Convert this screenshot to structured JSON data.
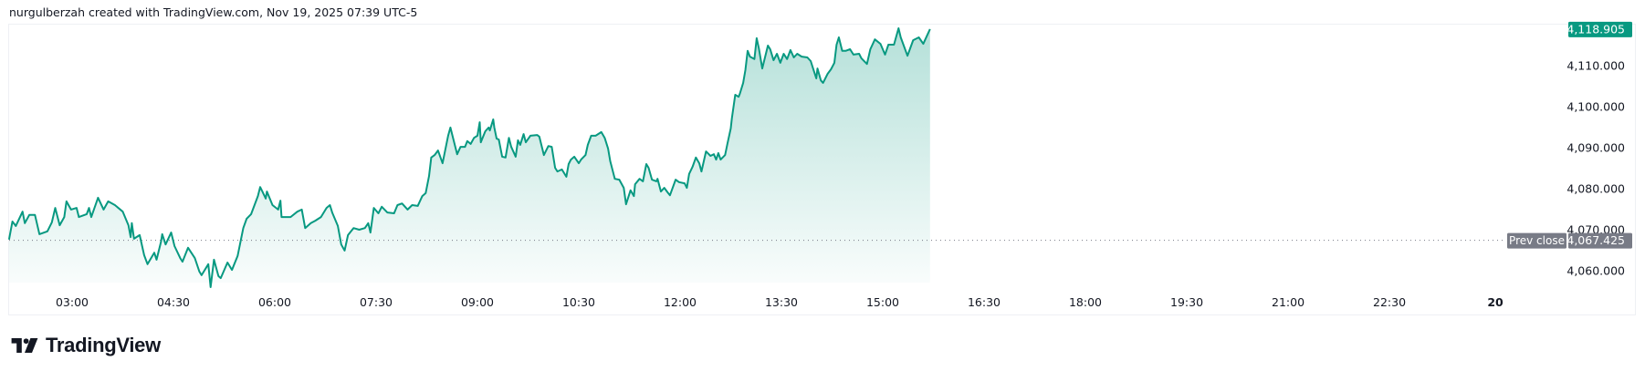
{
  "header": {
    "attribution": "nurgulberzah created with TradingView.com, Nov 19, 2025 07:39 UTC-5"
  },
  "logo": {
    "text": "TradingView"
  },
  "colors": {
    "line": "#089981",
    "last_price_badge": "#089981",
    "prev_close_badge": "#787b86",
    "axis_text": "#131722",
    "border": "#eef0f4"
  },
  "chart_data": {
    "type": "area",
    "title": "",
    "xlabel": "",
    "ylabel": "",
    "ylim": [
      4056,
      4120
    ],
    "grid": false,
    "y_ticks": [
      "4,110.000",
      "4,100.000",
      "4,090.000",
      "4,080.000",
      "4,070.000",
      "4,060.000"
    ],
    "y_tick_values": [
      4110,
      4100,
      4090,
      4080,
      4070,
      4060
    ],
    "x_ticks": [
      {
        "label": "03:00",
        "time": "03:00"
      },
      {
        "label": "04:30",
        "time": "04:30"
      },
      {
        "label": "06:00",
        "time": "06:00"
      },
      {
        "label": "07:30",
        "time": "07:30"
      },
      {
        "label": "09:00",
        "time": "09:00"
      },
      {
        "label": "10:30",
        "time": "10:30"
      },
      {
        "label": "12:00",
        "time": "12:00"
      },
      {
        "label": "13:30",
        "time": "13:30"
      },
      {
        "label": "15:00",
        "time": "15:00"
      },
      {
        "label": "16:30",
        "time": "16:30"
      },
      {
        "label": "18:00",
        "time": "18:00"
      },
      {
        "label": "19:30",
        "time": "19:30"
      },
      {
        "label": "21:00",
        "time": "21:00"
      },
      {
        "label": "22:30",
        "time": "22:30"
      },
      {
        "label": "20",
        "time": "24:00",
        "bold": true
      }
    ],
    "last_price": {
      "label": "4,118.905",
      "value": 4118.905
    },
    "prev_close": {
      "label": "Prev close",
      "value_label": "4,067.425",
      "value": 4067.425
    },
    "points": [
      [
        "02:04",
        4067.6
      ],
      [
        "02:07",
        4072.0
      ],
      [
        "02:10",
        4070.9
      ],
      [
        "02:16",
        4074.4
      ],
      [
        "02:18",
        4071.6
      ],
      [
        "02:22",
        4073.6
      ],
      [
        "02:27",
        4073.6
      ],
      [
        "02:31",
        4068.9
      ],
      [
        "02:38",
        4069.6
      ],
      [
        "02:42",
        4071.8
      ],
      [
        "02:45",
        4075.3
      ],
      [
        "02:49",
        4071.1
      ],
      [
        "02:53",
        4073.1
      ],
      [
        "02:55",
        4076.9
      ],
      [
        "02:59",
        4074.9
      ],
      [
        "03:04",
        4075.3
      ],
      [
        "03:06",
        4073.1
      ],
      [
        "03:13",
        4073.8
      ],
      [
        "03:15",
        4075.3
      ],
      [
        "03:17",
        4073.1
      ],
      [
        "03:23",
        4077.8
      ],
      [
        "03:28",
        4074.9
      ],
      [
        "03:32",
        4076.9
      ],
      [
        "03:38",
        4076.0
      ],
      [
        "03:45",
        4074.4
      ],
      [
        "03:50",
        4071.1
      ],
      [
        "03:52",
        4068.2
      ],
      [
        "03:53",
        4071.6
      ],
      [
        "03:55",
        4067.8
      ],
      [
        "04:00",
        4068.7
      ],
      [
        "04:04",
        4063.8
      ],
      [
        "04:07",
        4061.6
      ],
      [
        "04:13",
        4064.4
      ],
      [
        "04:15",
        4062.7
      ],
      [
        "04:19",
        4067.1
      ],
      [
        "04:20",
        4068.9
      ],
      [
        "04:23",
        4066.4
      ],
      [
        "04:28",
        4069.3
      ],
      [
        "04:31",
        4066.0
      ],
      [
        "04:36",
        4063.1
      ],
      [
        "04:38",
        4062.2
      ],
      [
        "04:43",
        4065.6
      ],
      [
        "04:49",
        4063.1
      ],
      [
        "04:53",
        4059.8
      ],
      [
        "04:55",
        4058.9
      ],
      [
        "05:01",
        4061.6
      ],
      [
        "05:03",
        4056.0
      ],
      [
        "05:06",
        4062.7
      ],
      [
        "05:10",
        4058.7
      ],
      [
        "05:12",
        4058.2
      ],
      [
        "05:18",
        4062.0
      ],
      [
        "05:22",
        4060.2
      ],
      [
        "05:27",
        4063.6
      ],
      [
        "05:32",
        4070.4
      ],
      [
        "05:35",
        4072.7
      ],
      [
        "05:39",
        4073.8
      ],
      [
        "05:45",
        4078.2
      ],
      [
        "05:47",
        4080.4
      ],
      [
        "05:49",
        4079.3
      ],
      [
        "05:52",
        4077.6
      ],
      [
        "05:53",
        4079.3
      ],
      [
        "05:58",
        4076.0
      ],
      [
        "06:03",
        4074.9
      ],
      [
        "06:05",
        4077.1
      ],
      [
        "06:06",
        4073.1
      ],
      [
        "06:14",
        4073.1
      ],
      [
        "06:20",
        4074.4
      ],
      [
        "06:24",
        4074.9
      ],
      [
        "06:27",
        4070.4
      ],
      [
        "06:32",
        4071.6
      ],
      [
        "06:36",
        4072.2
      ],
      [
        "06:41",
        4073.1
      ],
      [
        "06:46",
        4075.3
      ],
      [
        "06:49",
        4076.0
      ],
      [
        "06:51",
        4074.2
      ],
      [
        "06:56",
        4070.9
      ],
      [
        "06:59",
        4066.4
      ],
      [
        "07:02",
        4064.9
      ],
      [
        "07:05",
        4068.7
      ],
      [
        "07:10",
        4070.4
      ],
      [
        "07:15",
        4070.0
      ],
      [
        "07:20",
        4070.4
      ],
      [
        "07:23",
        4071.6
      ],
      [
        "07:25",
        4069.3
      ],
      [
        "07:28",
        4075.3
      ],
      [
        "07:32",
        4074.0
      ],
      [
        "07:35",
        4075.6
      ],
      [
        "07:40",
        4074.2
      ],
      [
        "07:46",
        4074.0
      ],
      [
        "07:49",
        4076.0
      ],
      [
        "07:53",
        4076.4
      ],
      [
        "07:58",
        4074.9
      ],
      [
        "08:02",
        4076.0
      ],
      [
        "08:07",
        4075.8
      ],
      [
        "08:11",
        4078.2
      ],
      [
        "08:14",
        4078.9
      ],
      [
        "08:17",
        4083.1
      ],
      [
        "08:19",
        4087.6
      ],
      [
        "08:22",
        4088.2
      ],
      [
        "08:25",
        4089.3
      ],
      [
        "08:29",
        4086.2
      ],
      [
        "08:34",
        4092.9
      ],
      [
        "08:36",
        4094.9
      ],
      [
        "08:42",
        4088.4
      ],
      [
        "08:45",
        4090.2
      ],
      [
        "08:49",
        4090.2
      ],
      [
        "08:51",
        4091.6
      ],
      [
        "08:54",
        4090.9
      ],
      [
        "08:57",
        4092.4
      ],
      [
        "09:00",
        4092.9
      ],
      [
        "09:02",
        4096.2
      ],
      [
        "09:03",
        4091.3
      ],
      [
        "09:07",
        4094.0
      ],
      [
        "09:10",
        4094.9
      ],
      [
        "09:11",
        4094.2
      ],
      [
        "09:14",
        4096.9
      ],
      [
        "09:15",
        4094.9
      ],
      [
        "09:17",
        4092.2
      ],
      [
        "09:19",
        4092.0
      ],
      [
        "09:22",
        4087.8
      ],
      [
        "09:25",
        4087.6
      ],
      [
        "09:28",
        4092.4
      ],
      [
        "09:30",
        4090.2
      ],
      [
        "09:34",
        4087.8
      ],
      [
        "09:36",
        4091.8
      ],
      [
        "09:38",
        4090.7
      ],
      [
        "09:41",
        4093.3
      ],
      [
        "09:43",
        4091.3
      ],
      [
        "09:47",
        4092.9
      ],
      [
        "09:53",
        4093.1
      ],
      [
        "09:55",
        4092.7
      ],
      [
        "09:59",
        4088.2
      ],
      [
        "10:03",
        4090.4
      ],
      [
        "10:06",
        4090.2
      ],
      [
        "10:09",
        4085.1
      ],
      [
        "10:11",
        4084.2
      ],
      [
        "10:15",
        4084.7
      ],
      [
        "10:19",
        4082.9
      ],
      [
        "10:21",
        4086.0
      ],
      [
        "10:23",
        4087.1
      ],
      [
        "10:26",
        4087.8
      ],
      [
        "10:30",
        4086.2
      ],
      [
        "10:32",
        4087.1
      ],
      [
        "10:36",
        4088.2
      ],
      [
        "10:38",
        4090.7
      ],
      [
        "10:41",
        4092.9
      ],
      [
        "10:45",
        4092.9
      ],
      [
        "10:50",
        4093.8
      ],
      [
        "10:53",
        4092.4
      ],
      [
        "10:56",
        4089.8
      ],
      [
        "10:58",
        4086.7
      ],
      [
        "11:02",
        4082.4
      ],
      [
        "11:06",
        4082.2
      ],
      [
        "11:10",
        4080.2
      ],
      [
        "11:12",
        4076.2
      ],
      [
        "11:16",
        4079.6
      ],
      [
        "11:19",
        4078.2
      ],
      [
        "11:20",
        4081.1
      ],
      [
        "11:24",
        4082.4
      ],
      [
        "11:27",
        4081.8
      ],
      [
        "11:30",
        4086.0
      ],
      [
        "11:32",
        4085.1
      ],
      [
        "11:35",
        4082.2
      ],
      [
        "11:39",
        4081.8
      ],
      [
        "11:40",
        4082.4
      ],
      [
        "11:43",
        4079.3
      ],
      [
        "11:46",
        4080.2
      ],
      [
        "11:49",
        4079.1
      ],
      [
        "11:51",
        4078.4
      ],
      [
        "11:56",
        4082.2
      ],
      [
        "11:59",
        4081.6
      ],
      [
        "12:04",
        4081.3
      ],
      [
        "12:06",
        4080.2
      ],
      [
        "12:08",
        4083.6
      ],
      [
        "12:11",
        4085.3
      ],
      [
        "12:14",
        4087.6
      ],
      [
        "12:17",
        4086.2
      ],
      [
        "12:19",
        4084.2
      ],
      [
        "12:23",
        4089.1
      ],
      [
        "12:27",
        4088.0
      ],
      [
        "12:30",
        4088.4
      ],
      [
        "12:32",
        4087.1
      ],
      [
        "12:34",
        4088.7
      ],
      [
        "12:36",
        4087.1
      ],
      [
        "12:40",
        4088.2
      ],
      [
        "12:42",
        4090.9
      ],
      [
        "12:45",
        4094.7
      ],
      [
        "12:46",
        4097.1
      ],
      [
        "12:49",
        4102.9
      ],
      [
        "12:52",
        4102.4
      ],
      [
        "12:53",
        4103.1
      ],
      [
        "12:56",
        4105.8
      ],
      [
        "12:58",
        4108.9
      ],
      [
        "13:00",
        4113.6
      ],
      [
        "13:02",
        4112.2
      ],
      [
        "13:06",
        4111.6
      ],
      [
        "13:08",
        4116.7
      ],
      [
        "13:10",
        4114.2
      ],
      [
        "13:13",
        4109.3
      ],
      [
        "13:18",
        4114.9
      ],
      [
        "13:20",
        4114.0
      ],
      [
        "13:23",
        4111.3
      ],
      [
        "13:26",
        4112.9
      ],
      [
        "13:29",
        4110.7
      ],
      [
        "13:32",
        4112.9
      ],
      [
        "13:35",
        4111.6
      ],
      [
        "13:38",
        4113.8
      ],
      [
        "13:41",
        4112.0
      ],
      [
        "13:44",
        4112.9
      ],
      [
        "13:48",
        4112.2
      ],
      [
        "13:53",
        4112.0
      ],
      [
        "13:56",
        4111.1
      ],
      [
        "14:01",
        4106.9
      ],
      [
        "14:02",
        4109.3
      ],
      [
        "14:05",
        4106.4
      ],
      [
        "14:07",
        4105.8
      ],
      [
        "14:11",
        4108.0
      ],
      [
        "14:14",
        4109.1
      ],
      [
        "14:17",
        4110.7
      ],
      [
        "14:19",
        4115.1
      ],
      [
        "14:21",
        4116.9
      ],
      [
        "14:24",
        4113.6
      ],
      [
        "14:27",
        4113.6
      ],
      [
        "14:31",
        4114.0
      ],
      [
        "14:34",
        4112.7
      ],
      [
        "14:39",
        4112.9
      ],
      [
        "14:41",
        4111.8
      ],
      [
        "14:46",
        4110.4
      ],
      [
        "14:49",
        4114.0
      ],
      [
        "14:53",
        4116.4
      ],
      [
        "14:58",
        4115.3
      ],
      [
        "15:02",
        4112.7
      ],
      [
        "15:05",
        4115.1
      ],
      [
        "15:10",
        4115.1
      ],
      [
        "15:14",
        4119.1
      ],
      [
        "15:16",
        4116.9
      ],
      [
        "15:22",
        4112.4
      ],
      [
        "15:27",
        4116.2
      ],
      [
        "15:32",
        4116.9
      ],
      [
        "15:36",
        4115.3
      ],
      [
        "15:42",
        4118.905
      ]
    ]
  }
}
